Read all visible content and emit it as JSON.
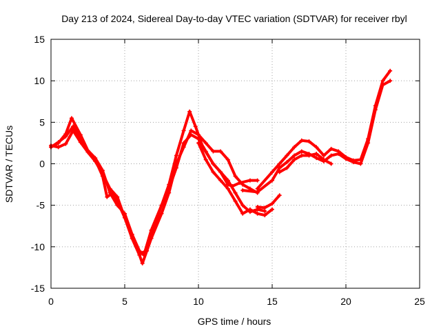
{
  "chart_data": {
    "type": "line",
    "title": "Day 213 of 2024, Sidereal Day-to-day VTEC variation (SDTVAR) for receiver rbyl",
    "xlabel": "GPS time / hours",
    "ylabel": "SDTVAR / TECUs",
    "xlim": [
      0,
      25
    ],
    "ylim": [
      -15,
      15
    ],
    "xticks": [
      0,
      5,
      10,
      15,
      20,
      25
    ],
    "yticks": [
      -15,
      -10,
      -5,
      0,
      5,
      10,
      15
    ],
    "grid": true,
    "series_color": "#ff0000",
    "series": [
      {
        "name": "track-1",
        "x": [
          0,
          0.5,
          1,
          1.4,
          2,
          2.5,
          3,
          3.5,
          4,
          4.5,
          5,
          5.5,
          6,
          6.3,
          6.8,
          7.5,
          8,
          8.5,
          9,
          9.4,
          9.8,
          10.3,
          11,
          11.5,
          12,
          12.3,
          12.8,
          13.5,
          14
        ],
        "y": [
          2,
          2.5,
          3.6,
          5.5,
          3.5,
          1.6,
          0.7,
          -0.8,
          -3.5,
          -5,
          -6,
          -8.5,
          -10.5,
          -11,
          -8,
          -5,
          -2.5,
          1,
          4,
          6.3,
          4.5,
          2,
          0,
          -1,
          -2.5,
          -2.7,
          -2.3,
          -2,
          -2
        ]
      },
      {
        "name": "track-2",
        "x": [
          0,
          0.5,
          1,
          1.5,
          2,
          2.5,
          3,
          3.5,
          3.8,
          4.2,
          4.5,
          5,
          5.5,
          6,
          6.2,
          6.8,
          7.5,
          8,
          8.5,
          9,
          9.5,
          10,
          10.5,
          11,
          11.5,
          12,
          12.5,
          13,
          13.5,
          14
        ],
        "y": [
          2,
          2.6,
          3.3,
          4.5,
          3,
          1.5,
          0.5,
          -1.5,
          -4,
          -3.5,
          -4.5,
          -6.5,
          -9,
          -11,
          -12,
          -9,
          -6,
          -3.5,
          0,
          2,
          4,
          3.5,
          2.5,
          1.5,
          1.5,
          0.5,
          -1.5,
          -2.5,
          -3,
          -3.5
        ]
      },
      {
        "name": "track-3",
        "x": [
          0,
          0.5,
          1,
          1.5,
          2,
          2.5,
          3,
          3.5,
          4,
          4.5,
          5,
          5.5,
          6,
          6.5,
          7,
          7.5,
          8,
          8.5,
          9,
          9.5,
          10,
          10.5,
          11,
          11.5,
          12,
          12.5,
          13,
          13.5,
          14,
          14.5
        ],
        "y": [
          2.2,
          2,
          2.4,
          4,
          2.6,
          1.4,
          0.3,
          -1.2,
          -3,
          -4,
          -6.5,
          -8.8,
          -10.8,
          -10.5,
          -7.5,
          -5,
          -3,
          -0.5,
          2.5,
          3.5,
          3,
          1.5,
          0,
          -1,
          -2,
          -3.5,
          -5,
          -5.8,
          -5.5,
          -5.7
        ]
      },
      {
        "name": "track-4",
        "x": [
          10,
          10.5,
          11,
          11.5,
          12,
          12.5,
          13,
          13.5,
          14,
          14.5,
          15
        ],
        "y": [
          2.5,
          0.5,
          -1,
          -2,
          -3,
          -4.5,
          -6,
          -5.5,
          -6,
          -6.2,
          -5.5
        ]
      },
      {
        "name": "track-5",
        "x": [
          14,
          14.5,
          15,
          15.5
        ],
        "y": [
          -5.2,
          -5.3,
          -4.8,
          -3.8
        ]
      },
      {
        "name": "track-6",
        "x": [
          14,
          15,
          15.5,
          16,
          16.5,
          17,
          17.5,
          18,
          18.5,
          19,
          19.5,
          20,
          20.5,
          21,
          21.5,
          22,
          22.5,
          23
        ],
        "y": [
          -3,
          -1,
          0,
          1,
          2,
          2.8,
          2.7,
          2,
          1,
          1.8,
          1.5,
          0.8,
          0.4,
          0.5,
          3,
          7,
          10,
          11.2
        ]
      },
      {
        "name": "track-7",
        "x": [
          13,
          14,
          15,
          15.5,
          16,
          16.5,
          17,
          17.5,
          18,
          18.5,
          19,
          19.5,
          20,
          20.5,
          21,
          21.5,
          22,
          22.5,
          23
        ],
        "y": [
          -3.2,
          -3.4,
          -2,
          -0.5,
          0.2,
          1,
          1.5,
          1.2,
          0.7,
          0.3,
          1,
          1.2,
          0.6,
          0.2,
          0,
          2.5,
          6.5,
          9.5,
          10
        ]
      },
      {
        "name": "track-8",
        "x": [
          15.5,
          16,
          16.5,
          17,
          17.5,
          18,
          18.5,
          19
        ],
        "y": [
          -1,
          -0.5,
          0.5,
          1,
          1,
          1.2,
          0.5,
          0
        ]
      }
    ]
  }
}
